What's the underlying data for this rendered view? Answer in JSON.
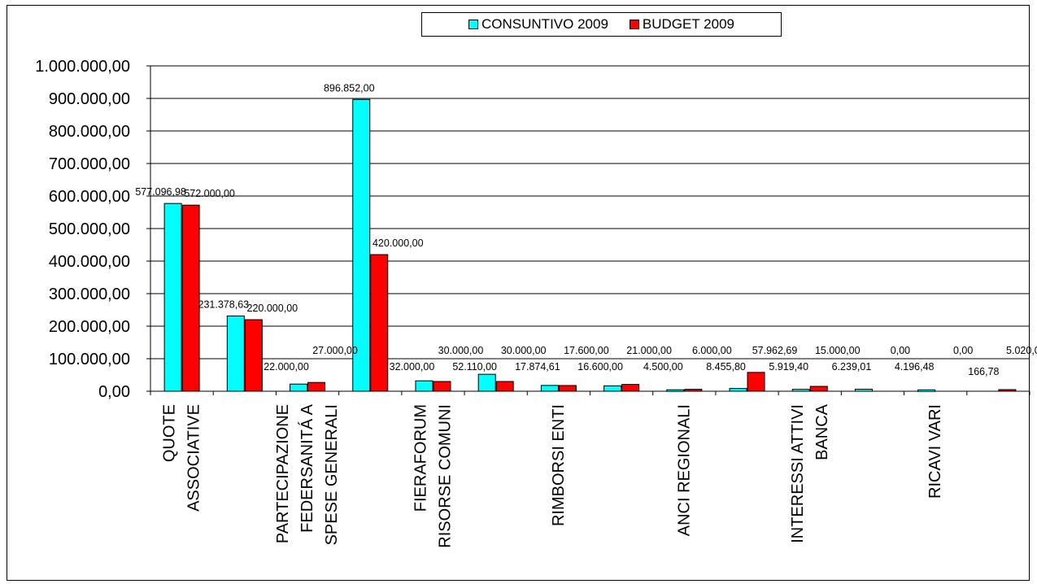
{
  "chart_data": {
    "type": "bar",
    "ylim": [
      0,
      1000000
    ],
    "yticks": [
      0,
      100000,
      200000,
      300000,
      400000,
      500000,
      600000,
      700000,
      800000,
      900000,
      1000000
    ],
    "ytick_labels": [
      "0,00",
      "100.000,00",
      "200.000,00",
      "300.000,00",
      "400.000,00",
      "500.000,00",
      "600.000,00",
      "700.000,00",
      "800.000,00",
      "900.000,00",
      "1.000.000,00"
    ],
    "grid": "horizontal",
    "legend_position": "top",
    "categories": [
      "QUOTE ASSOCIATIVE",
      "",
      "PARTECIPAZIONE FEDERSANITÁ A SPESE GENERALI",
      "",
      "FIERAFORUM RISORSE COMUNI",
      "",
      "RIMBORSI ENTI",
      "",
      "ANCI REGIONALI",
      "",
      "INTERESSI ATTIVI BANCA",
      "",
      "RICAVI VARI",
      ""
    ],
    "category_label_lines": [
      [
        "QUOTE",
        "ASSOCIATIVE"
      ],
      [],
      [
        "PARTECIPAZIONE",
        "FEDERSANITÁ A",
        "SPESE GENERALI"
      ],
      [],
      [
        "FIERAFORUM",
        "RISORSE COMUNI"
      ],
      [],
      [
        "RIMBORSI ENTI"
      ],
      [],
      [
        "ANCI REGIONALI"
      ],
      [],
      [
        "INTERESSI ATTIVI",
        "BANCA"
      ],
      [],
      [
        "RICAVI VARI"
      ],
      []
    ],
    "series": [
      {
        "name": "CONSUNTIVO 2009",
        "color": "#00FFFF",
        "values": [
          577096.98,
          231378.63,
          22000.0,
          896852.0,
          32000.0,
          52110.0,
          17874.61,
          16600.0,
          4500.0,
          8455.8,
          5919.4,
          6239.01,
          4196.48,
          0
        ],
        "labels": [
          "577.096,98",
          "231.378,63",
          "22.000,00",
          "896.852,00",
          "32.000,00",
          "52.110,00",
          "17.874,61",
          "16.600,00",
          "4.500,00",
          "8.455,80",
          "5.919,40",
          "6.239,01",
          "4.196,48",
          ""
        ]
      },
      {
        "name": "BUDGET 2009",
        "color": "#FF0000",
        "values": [
          572000.0,
          220000.0,
          27000.0,
          420000.0,
          30000.0,
          30000.0,
          17600.0,
          21000.0,
          6000.0,
          57962.69,
          15000.0,
          0.0,
          0.0,
          5020.0
        ],
        "labels": [
          "572.000,00",
          "220.000,00",
          "27.000,00",
          "420.000,00",
          "30.000,00",
          "30.000,00",
          "17.600,00",
          "21.000,00",
          "6.000,00",
          "57.962,69",
          "15.000,00",
          "0,00",
          "0,00",
          "5.020,00"
        ]
      }
    ],
    "extra_labels": [
      "166,78"
    ]
  }
}
